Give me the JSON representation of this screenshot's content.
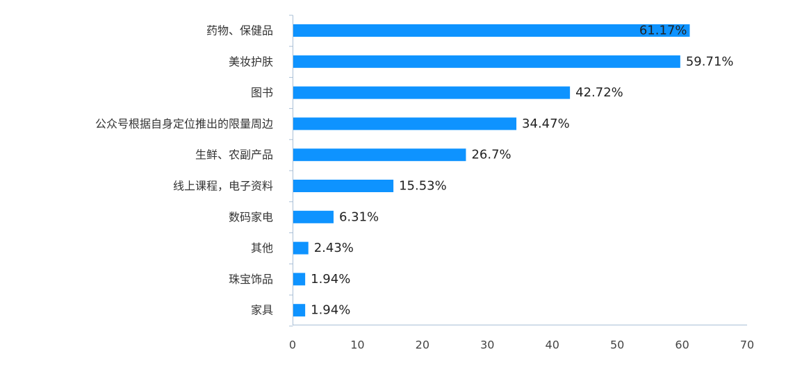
{
  "chart_data": {
    "type": "bar",
    "orientation": "horizontal",
    "title": "",
    "xlabel": "",
    "ylabel": "",
    "categories": [
      "药物、保健品",
      "美妆护肤",
      "图书",
      "公众号根据自身定位推出的限量周边",
      "生鲜、农副产品",
      "线上课程，电子资料",
      "数码家电",
      "其他",
      "珠宝饰品",
      "家具"
    ],
    "values": [
      61.17,
      59.71,
      42.72,
      34.47,
      26.7,
      15.53,
      6.31,
      2.43,
      1.94,
      1.94
    ],
    "data_labels": [
      "61.17%",
      "59.71%",
      "42.72%",
      "34.47%",
      "26.7%",
      "15.53%",
      "6.31%",
      "2.43%",
      "1.94%",
      "1.94%"
    ],
    "xlim": [
      0,
      70
    ],
    "x_ticks": [
      0,
      10,
      20,
      30,
      40,
      50,
      60,
      70
    ],
    "grid": false,
    "legend": "none",
    "bar_color": "#0e93ff"
  }
}
